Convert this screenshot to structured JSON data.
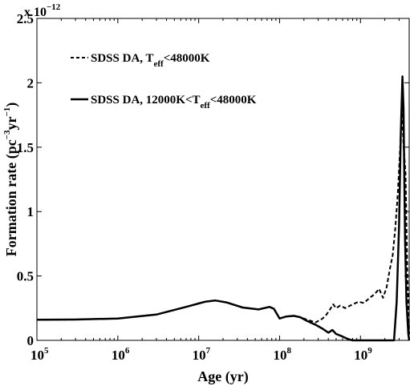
{
  "chart_data": {
    "type": "line",
    "xscale": "log",
    "xlabel": "Age (yr)",
    "ylabel_main": "Formation rate (pc",
    "ylabel_sup1": "−3",
    "ylabel_mid": "yr",
    "ylabel_sup2": "−1",
    "ylabel_end": ")",
    "y_multiplier_base": "x 10",
    "y_multiplier_exp": "−12",
    "xlim": [
      100000,
      4000000000
    ],
    "ylim": [
      0,
      2.5
    ],
    "x_ticks": [
      {
        "value": 100000,
        "base": "10",
        "exp": "5"
      },
      {
        "value": 1000000,
        "base": "10",
        "exp": "6"
      },
      {
        "value": 10000000,
        "base": "10",
        "exp": "7"
      },
      {
        "value": 100000000,
        "base": "10",
        "exp": "8"
      },
      {
        "value": 1000000000,
        "base": "10",
        "exp": "9"
      }
    ],
    "y_ticks": [
      {
        "value": 0,
        "label": "0"
      },
      {
        "value": 0.5,
        "label": "0.5"
      },
      {
        "value": 1,
        "label": "1"
      },
      {
        "value": 1.5,
        "label": "1.5"
      },
      {
        "value": 2,
        "label": "2"
      },
      {
        "value": 2.5,
        "label": "2.5"
      }
    ],
    "legend_position": "top-left",
    "series": [
      {
        "name": "SDSS DA, T_eff<48000K",
        "legend_main": "SDSS DA, T",
        "legend_sub": "eff",
        "legend_tail": "<48000K",
        "style": "dashed",
        "points": [
          [
            100000,
            0.16
          ],
          [
            300000,
            0.162
          ],
          [
            1000000,
            0.17
          ],
          [
            3000000,
            0.2
          ],
          [
            7000000,
            0.26
          ],
          [
            12000000,
            0.3
          ],
          [
            16000000,
            0.31
          ],
          [
            22000000,
            0.295
          ],
          [
            35000000,
            0.255
          ],
          [
            55000000,
            0.24
          ],
          [
            75000000,
            0.26
          ],
          [
            85000000,
            0.245
          ],
          [
            100000000,
            0.17
          ],
          [
            120000000,
            0.185
          ],
          [
            150000000,
            0.19
          ],
          [
            180000000,
            0.18
          ],
          [
            220000000,
            0.16
          ],
          [
            280000000,
            0.14
          ],
          [
            340000000,
            0.17
          ],
          [
            380000000,
            0.2
          ],
          [
            420000000,
            0.24
          ],
          [
            460000000,
            0.28
          ],
          [
            500000000,
            0.25
          ],
          [
            560000000,
            0.27
          ],
          [
            650000000,
            0.25
          ],
          [
            800000000,
            0.28
          ],
          [
            950000000,
            0.3
          ],
          [
            1100000000,
            0.29
          ],
          [
            1300000000,
            0.33
          ],
          [
            1500000000,
            0.36
          ],
          [
            1700000000,
            0.4
          ],
          [
            1900000000,
            0.33
          ],
          [
            2100000000,
            0.41
          ],
          [
            2300000000,
            0.55
          ],
          [
            2500000000,
            0.66
          ],
          [
            2700000000,
            0.88
          ],
          [
            2900000000,
            1.15
          ],
          [
            3100000000,
            1.5
          ],
          [
            3250000000,
            1.8
          ],
          [
            3400000000,
            1.52
          ],
          [
            3600000000,
            1.3
          ],
          [
            3800000000,
            0.5
          ],
          [
            4000000000,
            0.05
          ]
        ]
      },
      {
        "name": "SDSS DA, 12000K<T_eff<48000K",
        "legend_main": "SDSS DA, 12000K<T",
        "legend_sub": "eff",
        "legend_tail": "<48000K",
        "style": "solid",
        "points": [
          [
            100000,
            0.16
          ],
          [
            300000,
            0.162
          ],
          [
            1000000,
            0.17
          ],
          [
            3000000,
            0.2
          ],
          [
            7000000,
            0.26
          ],
          [
            12000000,
            0.3
          ],
          [
            16000000,
            0.31
          ],
          [
            22000000,
            0.295
          ],
          [
            35000000,
            0.255
          ],
          [
            55000000,
            0.24
          ],
          [
            75000000,
            0.26
          ],
          [
            85000000,
            0.245
          ],
          [
            100000000,
            0.17
          ],
          [
            120000000,
            0.185
          ],
          [
            150000000,
            0.19
          ],
          [
            180000000,
            0.18
          ],
          [
            220000000,
            0.15
          ],
          [
            280000000,
            0.12
          ],
          [
            340000000,
            0.09
          ],
          [
            400000000,
            0.06
          ],
          [
            450000000,
            0.08
          ],
          [
            500000000,
            0.05
          ],
          [
            600000000,
            0.03
          ],
          [
            700000000,
            0.01
          ],
          [
            800000000,
            0.0
          ],
          [
            1000000000,
            0.0
          ],
          [
            2000000000,
            0.0
          ],
          [
            2600000000,
            0.0
          ],
          [
            2800000000,
            0.3
          ],
          [
            3000000000,
            0.9
          ],
          [
            3150000000,
            1.6
          ],
          [
            3300000000,
            2.05
          ],
          [
            3400000000,
            1.8
          ],
          [
            3550000000,
            0.8
          ],
          [
            3700000000,
            0.3
          ],
          [
            3900000000,
            0.05
          ],
          [
            4000000000,
            0.0
          ]
        ]
      }
    ]
  }
}
